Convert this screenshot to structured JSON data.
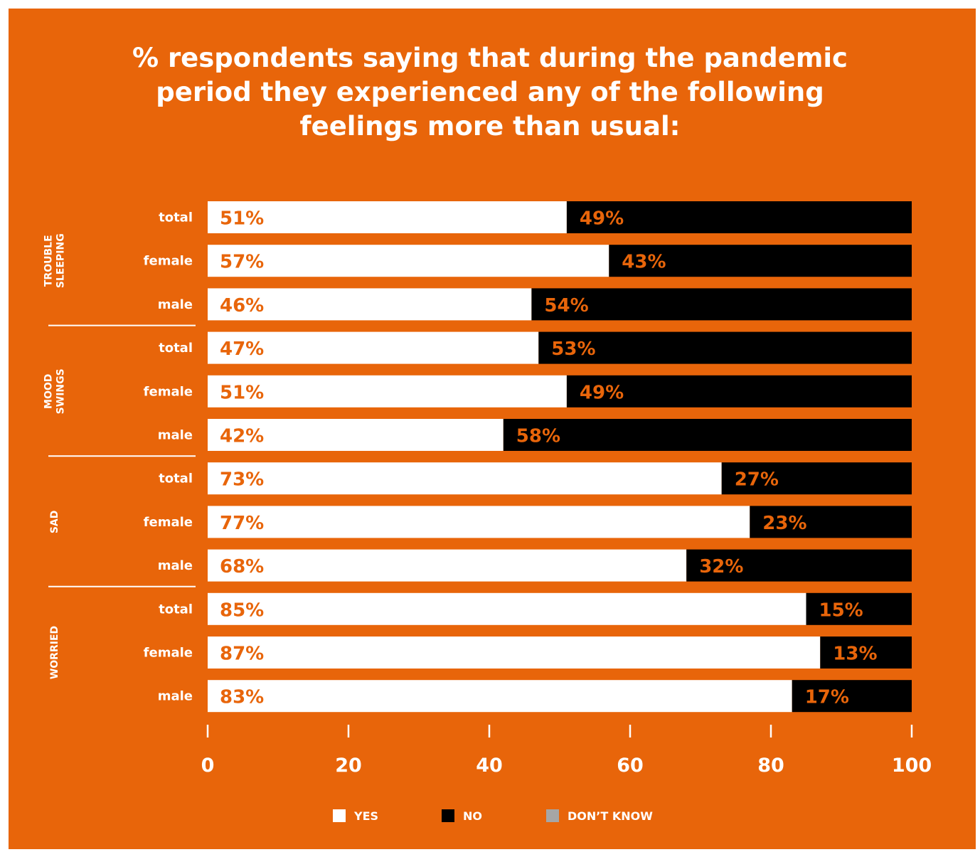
{
  "title_lines": [
    "% respondents saying that during the pandemic",
    "period they experienced any of the following",
    "feelings more than usual:"
  ],
  "colors": {
    "background": "#e8650a",
    "yes": "#ffffff",
    "no": "#000000",
    "dont_know": "#a6a6a6",
    "value_label": "#e8650a",
    "text": "#ffffff"
  },
  "legend": [
    {
      "key": "yes",
      "label": "YES"
    },
    {
      "key": "no",
      "label": "NO"
    },
    {
      "key": "dont_know",
      "label": "DON’T KNOW"
    }
  ],
  "chart_data": {
    "type": "bar",
    "orientation": "horizontal",
    "stacked": true,
    "xlim": [
      0,
      100
    ],
    "xticks": [
      0,
      20,
      40,
      60,
      80,
      100
    ],
    "groups": [
      {
        "name": "TROUBLE SLEEPING",
        "name_lines": [
          "TROUBLE",
          "SLEEPING"
        ],
        "categories": [
          "total",
          "female",
          "male"
        ]
      },
      {
        "name": "MOOD SWINGS",
        "name_lines": [
          "MOOD",
          "SWINGS"
        ],
        "categories": [
          "total",
          "female",
          "male"
        ]
      },
      {
        "name": "SAD",
        "name_lines": [
          "SAD"
        ],
        "categories": [
          "total",
          "female",
          "male"
        ]
      },
      {
        "name": "WORRIED",
        "name_lines": [
          "WORRIED"
        ],
        "categories": [
          "total",
          "female",
          "male"
        ]
      }
    ],
    "series": [
      {
        "name": "YES",
        "values": [
          51,
          57,
          46,
          47,
          51,
          42,
          73,
          77,
          68,
          85,
          87,
          83
        ],
        "labels": [
          "51%",
          "57%",
          "46%",
          "47%",
          "51%",
          "42%",
          "73%",
          "77%",
          "68%",
          "85%",
          "87%",
          "83%"
        ]
      },
      {
        "name": "NO",
        "values": [
          49,
          43,
          54,
          53,
          49,
          58,
          27,
          23,
          32,
          15,
          13,
          17
        ],
        "labels": [
          "49%",
          "43%",
          "54%",
          "53%",
          "49%",
          "58%",
          "27%",
          "23%",
          "32%",
          "15%",
          "13%",
          "17%"
        ]
      },
      {
        "name": "DON’T KNOW",
        "values": [
          0,
          0,
          0,
          0,
          0,
          0,
          0,
          0,
          0,
          0,
          0,
          0
        ]
      }
    ]
  }
}
